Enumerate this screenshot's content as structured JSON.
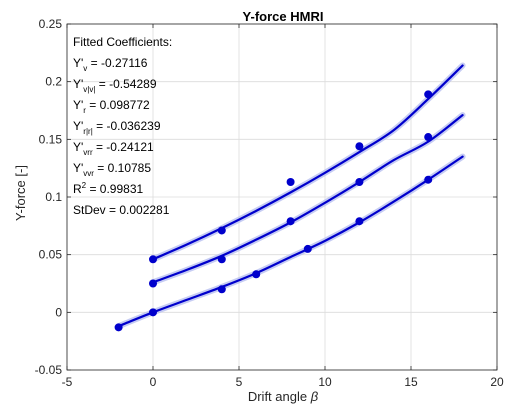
{
  "chart_data": {
    "type": "scatter",
    "title": "Y-force HMRI",
    "xlabel": "Drift angle ",
    "xlabel_symbol": "β",
    "ylabel": "Y-force [-]",
    "xlim": [
      -5,
      20
    ],
    "ylim": [
      -0.05,
      0.25
    ],
    "xticks": [
      -5,
      0,
      5,
      10,
      15,
      20
    ],
    "xtick_labels": [
      "-5",
      "0",
      "5",
      "10",
      "15",
      "20"
    ],
    "yticks": [
      -0.05,
      0,
      0.05,
      0.1,
      0.15,
      0.2,
      0.25
    ],
    "ytick_labels": [
      "-0.05",
      "0",
      "0.05",
      "0.1",
      "0.15",
      "0.2",
      "0.25"
    ],
    "grid": true,
    "colors": {
      "series": "#0000cc",
      "band": "#b8bff0",
      "grid": "#dcdcdc",
      "axis": "#262626"
    },
    "series": [
      {
        "points": {
          "x": [
            0,
            4,
            8,
            12,
            16
          ],
          "y": [
            0.046,
            0.071,
            0.113,
            0.144,
            0.189
          ]
        },
        "fit": {
          "x": [
            0,
            2,
            4,
            6,
            8,
            10,
            12,
            14,
            16,
            18
          ],
          "y": [
            0.046,
            0.059,
            0.073,
            0.088,
            0.104,
            0.121,
            0.139,
            0.158,
            0.185,
            0.214
          ]
        }
      },
      {
        "points": {
          "x": [
            0,
            4,
            8,
            12,
            16
          ],
          "y": [
            0.025,
            0.046,
            0.079,
            0.113,
            0.152
          ]
        },
        "fit": {
          "x": [
            0,
            2,
            4,
            6,
            8,
            10,
            12,
            14,
            16,
            18
          ],
          "y": [
            0.026,
            0.037,
            0.049,
            0.063,
            0.078,
            0.095,
            0.113,
            0.132,
            0.148,
            0.171
          ]
        }
      },
      {
        "points": {
          "x": [
            -2,
            0,
            4,
            6,
            9,
            12,
            16
          ],
          "y": [
            -0.013,
            0.0,
            0.02,
            0.033,
            0.055,
            0.079,
            0.115
          ]
        },
        "fit": {
          "x": [
            -2,
            0,
            2,
            4,
            6,
            8,
            10,
            12,
            14,
            16,
            18
          ],
          "y": [
            -0.012,
            0.0,
            0.011,
            0.022,
            0.034,
            0.048,
            0.062,
            0.078,
            0.096,
            0.115,
            0.135
          ]
        }
      }
    ],
    "annotation": {
      "header": "Fitted Coefficients:",
      "lines": [
        {
          "base": "Y'",
          "sub": "v",
          "sup": "",
          "value": " = -0.27116"
        },
        {
          "base": "Y'",
          "sub": "v|v|",
          "sup": "",
          "value": " = -0.54289"
        },
        {
          "base": "Y'",
          "sub": "r",
          "sup": "",
          "value": " = 0.098772"
        },
        {
          "base": "Y'",
          "sub": "r|r|",
          "sup": "",
          "value": " = -0.036239"
        },
        {
          "base": "Y'",
          "sub": "vrr",
          "sup": "",
          "value": " = -0.24121"
        },
        {
          "base": "Y'",
          "sub": "vvr",
          "sup": "",
          "value": " = 0.10785"
        },
        {
          "base": "R",
          "sub": "",
          "sup": "2",
          "value": " = 0.99831"
        },
        {
          "base": "StDev = 0.002281",
          "sub": "",
          "sup": "",
          "value": ""
        }
      ]
    }
  }
}
